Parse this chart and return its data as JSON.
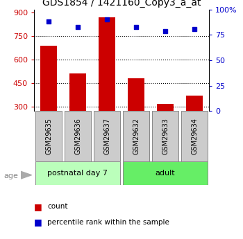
{
  "title": "GDS1854 / 1421160_Copy3_a_at",
  "samples": [
    "GSM29635",
    "GSM29636",
    "GSM29637",
    "GSM29632",
    "GSM29633",
    "GSM29634"
  ],
  "counts": [
    690,
    510,
    870,
    480,
    315,
    370
  ],
  "percentiles": [
    88,
    83,
    90,
    83,
    79,
    81
  ],
  "ylim_left": [
    270,
    920
  ],
  "ylim_right": [
    0,
    100
  ],
  "yticks_left": [
    300,
    450,
    600,
    750,
    900
  ],
  "yticks_right": [
    0,
    25,
    50,
    75,
    100
  ],
  "ytick_labels_right": [
    "0",
    "25",
    "50",
    "75",
    "100%"
  ],
  "groups": [
    {
      "label": "postnatal day 7",
      "indices": [
        0,
        1,
        2
      ],
      "color": "#bbffbb"
    },
    {
      "label": "adult",
      "indices": [
        3,
        4,
        5
      ],
      "color": "#66ee66"
    }
  ],
  "age_label": "age",
  "bar_color": "#cc0000",
  "dot_color": "#0000cc",
  "bar_bottom": 270,
  "legend_count_color": "#cc0000",
  "legend_pct_color": "#0000cc",
  "legend_count_label": "count",
  "legend_pct_label": "percentile rank within the sample",
  "left_axis_color": "#cc0000",
  "right_axis_color": "#0000cc",
  "sample_box_color": "#cccccc",
  "dot_size": 25
}
